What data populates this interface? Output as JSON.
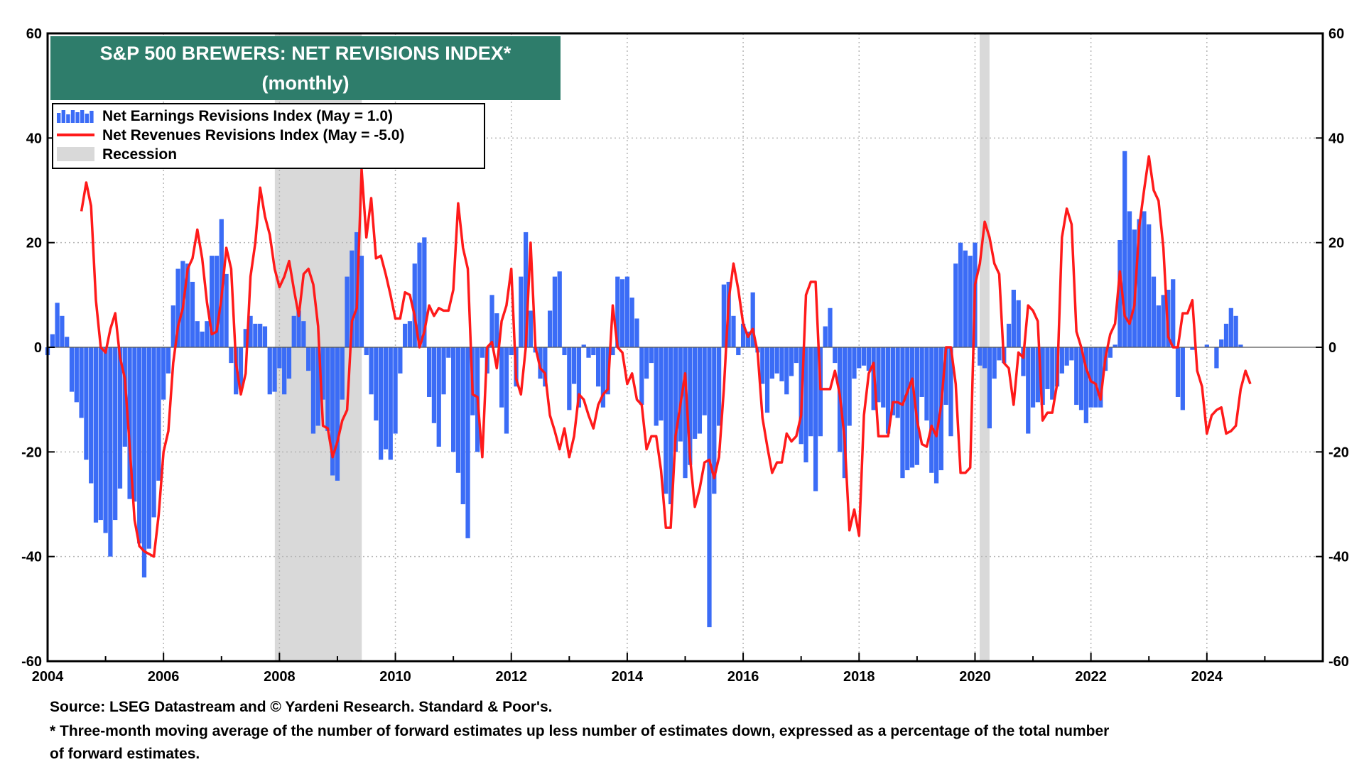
{
  "chart_data": {
    "type": "bar+line",
    "title_line1": "S&P 500 BREWERS: NET REVISIONS INDEX*",
    "title_line2": "(monthly)",
    "title_bg": "#2e7d6b",
    "ylim": [
      -60,
      60
    ],
    "yticks": [
      60,
      40,
      20,
      0,
      -20,
      -40,
      -60
    ],
    "xlim": [
      2004.0,
      2026.0
    ],
    "xticks": [
      2004,
      2006,
      2008,
      2010,
      2012,
      2014,
      2016,
      2018,
      2020,
      2022,
      2024
    ],
    "legend": [
      {
        "label": "Net Earnings Revisions Index (May  = 1.0)",
        "kind": "bar",
        "color": "#3b6cf6"
      },
      {
        "label": "Net Revenues Revisions Index (May  = -5.0)",
        "kind": "line",
        "color": "#ff1a1a"
      },
      {
        "label": "Recession",
        "kind": "shade",
        "color": "#d9d9d9"
      }
    ],
    "recessions": [
      [
        2007.92,
        2009.42
      ],
      [
        2020.08,
        2020.25
      ]
    ],
    "earnings": {
      "name": "Net Earnings Revisions Index",
      "start": 2004.0,
      "step": 0.0833333,
      "values": [
        -1.5,
        2.5,
        8.5,
        6,
        2,
        -8.5,
        -10.5,
        -13.5,
        -21.5,
        -26,
        -33.5,
        -33,
        -35.5,
        -40,
        -33,
        -27,
        -19,
        -29,
        -29.5,
        -37.5,
        -44,
        -38.5,
        -32.5,
        -25.5,
        -10,
        -5,
        8,
        15,
        16.5,
        16,
        12.5,
        5,
        3,
        5,
        17.5,
        17.5,
        24.5,
        14,
        -3,
        -9,
        -8,
        3.5,
        6,
        4.5,
        4.5,
        4,
        -9,
        -8.5,
        -4,
        -9,
        -6,
        6,
        7,
        5,
        -4.5,
        -16.5,
        -15,
        -10,
        -16,
        -24.5,
        -25.5,
        -10,
        13.5,
        18.5,
        22,
        17.5,
        -1.5,
        -9,
        -14,
        -21.5,
        -19.5,
        -21.5,
        -16.5,
        -5,
        4.5,
        5,
        16,
        20,
        21,
        -9.5,
        -14.5,
        -19,
        -9,
        -2,
        -20,
        -24,
        -30,
        -36.5,
        -13,
        -20,
        -2,
        -5,
        10,
        6.5,
        -11.5,
        -16.5,
        -1.5,
        -7.5,
        13.5,
        22,
        7,
        -1,
        -6,
        -7.5,
        7,
        13.5,
        14.5,
        -1.5,
        -12,
        -7,
        -11.5,
        0.5,
        -2,
        -1.5,
        -7.5,
        -11.5,
        -9,
        -1.5,
        13.5,
        13,
        13.5,
        9.5,
        5.5,
        -11,
        -6,
        -3,
        -15,
        -14,
        -28,
        -30,
        -20,
        -18,
        -25,
        -22.5,
        -17.5,
        -16.5,
        -13,
        -53.5,
        -28,
        -15,
        12,
        12.5,
        6,
        -1.5,
        4.5,
        3,
        10.5,
        -1,
        -7,
        -12.5,
        -6,
        -5,
        -6.5,
        -9,
        -5.5,
        -3,
        -18.5,
        -22,
        -17,
        -27.5,
        -17,
        4,
        7.5,
        -3,
        -20,
        -25,
        -15,
        -6,
        -4,
        -3.5,
        -4.5,
        -12,
        -10.5,
        -11.5,
        -16.5,
        -13,
        -13.5,
        -25,
        -23.5,
        -23,
        -22.5,
        -9.5,
        -14,
        -24,
        -26,
        -23.5,
        -11,
        -17,
        16,
        20,
        18.5,
        17.5,
        20,
        -3.5,
        -4,
        -15.5,
        -6,
        -2.5,
        -3,
        4.5,
        11,
        9,
        -5.5,
        -16.5,
        -11.5,
        -10.5,
        -11,
        -8,
        -10,
        -7.5,
        -5,
        -3.5,
        -2.5,
        -11,
        -12,
        -14.5,
        -11.5,
        -11.5,
        -11.5,
        -4.5,
        -2,
        0.5,
        20.5,
        37.5,
        26,
        22.5,
        24.5,
        26,
        23.5,
        13.5,
        8,
        10,
        11,
        13,
        -9.5,
        -12,
        0,
        -0.5,
        0,
        0,
        0.5,
        0,
        -4,
        1.5,
        4.5,
        7.5,
        6,
        0.5
      ]
    },
    "revenues": {
      "name": "Net Revenues Revisions Index",
      "start": 2004.0,
      "step": 0.0833333,
      "values": [
        null,
        null,
        null,
        null,
        null,
        null,
        null,
        26,
        31.5,
        27,
        9,
        0,
        -1,
        3.5,
        6.5,
        -2,
        -6,
        -19,
        -33,
        -38,
        -39,
        -39.5,
        -40,
        -32,
        -20,
        -16,
        -3,
        4,
        7.5,
        15,
        17,
        22.5,
        17,
        8.5,
        2.5,
        3,
        9.5,
        19,
        15,
        -3,
        -9,
        -5,
        13.5,
        20,
        30.5,
        25,
        21.5,
        15,
        11.5,
        13.5,
        16.5,
        11,
        6,
        14,
        15,
        12,
        4,
        -15,
        -15.5,
        -21,
        -18,
        -14,
        -12,
        5,
        7.5,
        34,
        21,
        28.5,
        17,
        17.5,
        14,
        10,
        5.5,
        5.5,
        10.5,
        10,
        6,
        0,
        3,
        8,
        6,
        7.5,
        7,
        7,
        11,
        27.5,
        19,
        15,
        -9,
        -9.5,
        -21,
        0,
        1,
        -4,
        5,
        8,
        15,
        -6,
        -9,
        0,
        20,
        0,
        -4,
        -5,
        -13,
        -16,
        -19.5,
        -15.5,
        -21,
        -17,
        -9,
        -10,
        -13,
        -15.5,
        -11,
        -9,
        -8,
        8,
        0,
        -1,
        -7,
        -5,
        -10,
        -11,
        -19.5,
        -17,
        -17,
        -23.5,
        -34.5,
        -34.5,
        -17,
        -11,
        -5,
        -21,
        -30.5,
        -27,
        -22,
        -21.5,
        -25,
        -21,
        -8,
        9,
        16,
        11,
        4.5,
        2,
        3.5,
        -1,
        -13.5,
        -19,
        -24,
        -22,
        -22,
        -16.5,
        -18,
        -17,
        -13,
        10,
        12.5,
        12.5,
        -8,
        -8,
        -8,
        -4.5,
        -9,
        -17.5,
        -35,
        -31,
        -36,
        -13,
        -5,
        -3,
        -17,
        -17,
        -17,
        -10.5,
        -10.5,
        -11,
        -8.5,
        -6,
        -14,
        -18.5,
        -19,
        -15,
        -17,
        -11,
        0,
        0,
        -7,
        -24,
        -24,
        -23,
        12,
        16,
        24,
        21,
        16,
        14,
        -3,
        -4,
        -11,
        -1,
        -2,
        8,
        7,
        5,
        -14,
        -12.5,
        -12.5,
        -7,
        21,
        26.5,
        23.5,
        3,
        0,
        -4,
        -6.5,
        -7,
        -10,
        -2,
        2.5,
        4.5,
        14.5,
        6,
        4.5,
        8,
        23,
        30,
        36.5,
        30,
        28,
        19,
        2,
        0,
        0,
        6.5,
        6.5,
        9,
        -4.5,
        -7.5,
        -16.5,
        -13,
        -12,
        -11.5,
        -16.5,
        -16,
        -15,
        -8,
        -4.5,
        -7
      ]
    }
  },
  "footnotes": {
    "source": "Source: LSEG Datastream and © Yardeni Research. Standard & Poor's.",
    "note_line1": "* Three-month moving average of the number of forward estimates up less number of estimates down, expressed as a percentage of the total number",
    "note_line2": " of forward estimates."
  }
}
